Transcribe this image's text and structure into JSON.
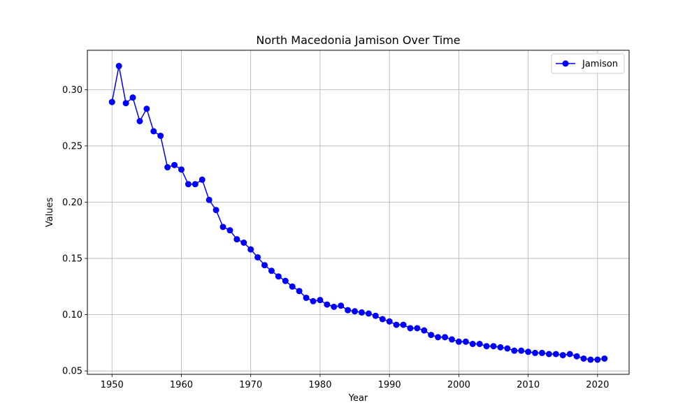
{
  "chart_data": {
    "type": "line",
    "title": "North Macedonia Jamison Over Time",
    "xlabel": "Year",
    "ylabel": "Values",
    "xlim": [
      1946.45,
      2024.55
    ],
    "ylim": [
      0.047,
      0.335
    ],
    "x_ticks": [
      1950,
      1960,
      1970,
      1980,
      1990,
      2000,
      2010,
      2020
    ],
    "y_ticks": [
      0.05,
      0.1,
      0.15,
      0.2,
      0.25,
      0.3
    ],
    "y_tick_labels": [
      "0.05",
      "0.10",
      "0.15",
      "0.20",
      "0.25",
      "0.30"
    ],
    "x_tick_labels": [
      "1950",
      "1960",
      "1970",
      "1980",
      "1990",
      "2000",
      "2010",
      "2020"
    ],
    "grid": true,
    "legend_position": "top-right",
    "series": [
      {
        "name": "Jamison",
        "color": "#0000ff",
        "marker": "circle",
        "x": [
          1950,
          1951,
          1952,
          1953,
          1954,
          1955,
          1956,
          1957,
          1958,
          1959,
          1960,
          1961,
          1962,
          1963,
          1964,
          1965,
          1966,
          1967,
          1968,
          1969,
          1970,
          1971,
          1972,
          1973,
          1974,
          1975,
          1976,
          1977,
          1978,
          1979,
          1980,
          1981,
          1982,
          1983,
          1984,
          1985,
          1986,
          1987,
          1988,
          1989,
          1990,
          1991,
          1992,
          1993,
          1994,
          1995,
          1996,
          1997,
          1998,
          1999,
          2000,
          2001,
          2002,
          2003,
          2004,
          2005,
          2006,
          2007,
          2008,
          2009,
          2010,
          2011,
          2012,
          2013,
          2014,
          2015,
          2016,
          2017,
          2018,
          2019,
          2020,
          2021
        ],
        "values": [
          0.289,
          0.321,
          0.288,
          0.293,
          0.272,
          0.283,
          0.263,
          0.259,
          0.231,
          0.233,
          0.229,
          0.216,
          0.216,
          0.22,
          0.202,
          0.193,
          0.178,
          0.175,
          0.167,
          0.164,
          0.158,
          0.151,
          0.144,
          0.139,
          0.134,
          0.13,
          0.125,
          0.121,
          0.115,
          0.112,
          0.113,
          0.109,
          0.107,
          0.108,
          0.104,
          0.103,
          0.102,
          0.101,
          0.099,
          0.096,
          0.094,
          0.091,
          0.091,
          0.088,
          0.088,
          0.086,
          0.082,
          0.08,
          0.08,
          0.078,
          0.076,
          0.076,
          0.074,
          0.074,
          0.072,
          0.072,
          0.071,
          0.07,
          0.068,
          0.068,
          0.067,
          0.066,
          0.066,
          0.065,
          0.065,
          0.064,
          0.065,
          0.063,
          0.061,
          0.06,
          0.06,
          0.061
        ]
      }
    ]
  }
}
